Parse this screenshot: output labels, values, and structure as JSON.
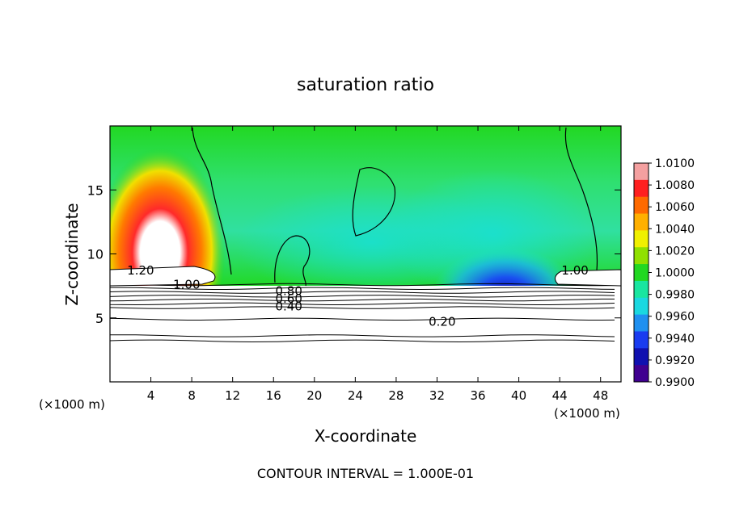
{
  "chart_data": {
    "type": "heatmap",
    "title": "saturation ratio",
    "xlabel": "X-coordinate",
    "ylabel": "Z-coordinate",
    "x_units": "(×1000 m)",
    "x_units_right": "(×1000 m)",
    "footer": "CONTOUR INTERVAL = 1.000E-01",
    "xlim": [
      0,
      50
    ],
    "ylim": [
      0,
      20
    ],
    "x_ticks": [
      {
        "value": 4,
        "label": "4"
      },
      {
        "value": 8,
        "label": "8"
      },
      {
        "value": 12,
        "label": "12"
      },
      {
        "value": 16,
        "label": "16"
      },
      {
        "value": 20,
        "label": "20"
      },
      {
        "value": 24,
        "label": "24"
      },
      {
        "value": 28,
        "label": "28"
      },
      {
        "value": 32,
        "label": "32"
      },
      {
        "value": 36,
        "label": "36"
      },
      {
        "value": 40,
        "label": "40"
      },
      {
        "value": 44,
        "label": "44"
      },
      {
        "value": 48,
        "label": "48"
      }
    ],
    "y_ticks": [
      {
        "value": 5,
        "label": "5"
      },
      {
        "value": 10,
        "label": "10"
      },
      {
        "value": 15,
        "label": "15"
      }
    ],
    "colorbar": {
      "min": 0.99,
      "max": 1.01,
      "ticks": [
        "1.0100",
        "1.0080",
        "1.0060",
        "1.0040",
        "1.0020",
        "1.0000",
        "0.9980",
        "0.9960",
        "0.9940",
        "0.9920",
        "0.9900"
      ],
      "colors": [
        "#f4a0a0",
        "#ff2020",
        "#ff6a00",
        "#ffb000",
        "#f0f000",
        "#90e000",
        "#22d822",
        "#19e6a0",
        "#1ad8e0",
        "#1f90f0",
        "#1a3cf0",
        "#1010b0",
        "#400090"
      ]
    },
    "contour_levels": [
      0.2,
      0.4,
      0.6,
      0.8,
      1.0,
      1.2
    ],
    "contour_labels": [
      {
        "label": "1.20",
        "x": 3.0,
        "z": 8.7
      },
      {
        "label": "1.00",
        "x": 7.5,
        "z": 7.6
      },
      {
        "label": "0.80",
        "x": 17.5,
        "z": 7.1
      },
      {
        "label": "0.60",
        "x": 17.5,
        "z": 6.5
      },
      {
        "label": "0.40",
        "x": 17.5,
        "z": 5.9
      },
      {
        "label": "0.20",
        "x": 32.5,
        "z": 4.7
      },
      {
        "label": "1.00",
        "x": 45.5,
        "z": 8.7
      }
    ],
    "contour_lines_z": [
      3.2,
      3.6,
      4.9,
      5.8,
      6.1,
      6.4,
      6.7,
      7.0,
      7.3,
      7.6
    ]
  }
}
